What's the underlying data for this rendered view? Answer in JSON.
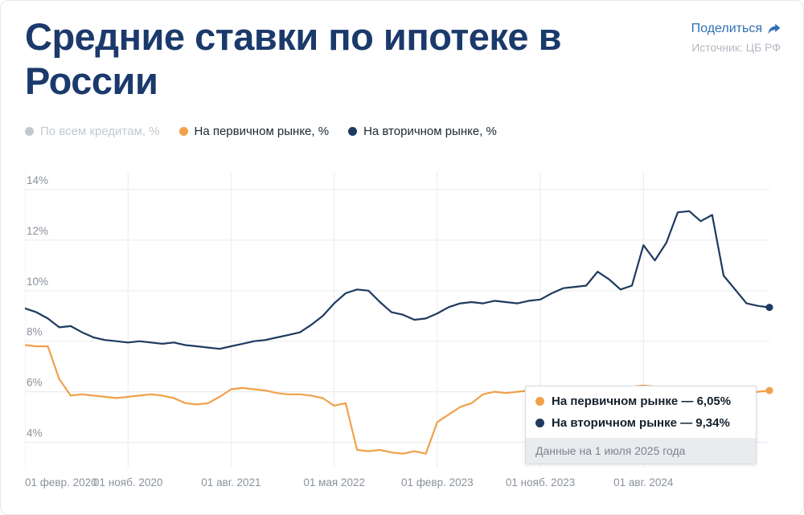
{
  "header": {
    "title": "Средние ставки по ипотеке в России",
    "share_label": "Поделиться",
    "source": "Источник: ЦБ РФ"
  },
  "legend": {
    "items": [
      {
        "label": "По всем кредитам, %",
        "color": "#c3c9d0",
        "active": false
      },
      {
        "label": "На первичном рынке, %",
        "color": "#f2a04a",
        "active": true
      },
      {
        "label": "На вторичном рынке, %",
        "color": "#1e3a5f",
        "active": true
      }
    ]
  },
  "tooltip": {
    "items": [
      {
        "text": "На первичном рынке — 6,05%",
        "color": "#f2a04a"
      },
      {
        "text": "На вторичном рынке — 9,34%",
        "color": "#1e3a5f"
      }
    ],
    "footer": "Данные на 1 июля 2025 года"
  },
  "chart_data": {
    "type": "line",
    "title": "Средние ставки по ипотеке в России",
    "x_unit": "month",
    "x_start": "2020-02",
    "x_end": "2025-07",
    "tick_indices": [
      0,
      9,
      18,
      27,
      36,
      45,
      54
    ],
    "tick_labels": [
      "01 февр. 2020",
      "01 нояб. 2020",
      "01 авг. 2021",
      "01 мая 2022",
      "01 февр. 2023",
      "01 нояб. 2023",
      "01 авг. 2024"
    ],
    "ylim": [
      3.0,
      14.7
    ],
    "y_ticks": [
      4,
      6,
      8,
      10,
      12,
      14
    ],
    "y_tick_labels": [
      "4%",
      "6%",
      "8%",
      "10%",
      "12%",
      "14%"
    ],
    "grid": true,
    "grid_color": "#e8eaee",
    "axis_label_color": "#8a919b",
    "legend_position": "top",
    "series": [
      {
        "id": "primary",
        "name": "На первичном рынке, %",
        "color": "#f2a04a",
        "last_value_label": "6,05%",
        "values": [
          7.85,
          7.8,
          7.8,
          6.5,
          5.85,
          5.9,
          5.85,
          5.8,
          5.75,
          5.8,
          5.85,
          5.9,
          5.85,
          5.75,
          5.55,
          5.5,
          5.55,
          5.8,
          6.1,
          6.15,
          6.1,
          6.05,
          5.95,
          5.9,
          5.9,
          5.85,
          5.75,
          5.45,
          5.55,
          3.7,
          3.65,
          3.7,
          3.6,
          3.55,
          3.65,
          3.55,
          4.8,
          5.1,
          5.4,
          5.55,
          5.9,
          6.0,
          5.95,
          6.0,
          6.05,
          6.1,
          6.05,
          6.1,
          6.15,
          6.2,
          6.15,
          6.1,
          6.15,
          6.2,
          6.25,
          6.2,
          6.1,
          6.15,
          6.2,
          6.0,
          5.9,
          5.95,
          6.0,
          6.0,
          6.0,
          6.05
        ]
      },
      {
        "id": "secondary",
        "name": "На вторичном рынке, %",
        "color": "#1e3a5f",
        "last_value_label": "9,34%",
        "values": [
          9.3,
          9.15,
          8.9,
          8.55,
          8.6,
          8.35,
          8.15,
          8.05,
          8.0,
          7.95,
          8.0,
          7.95,
          7.9,
          7.95,
          7.85,
          7.8,
          7.75,
          7.7,
          7.8,
          7.9,
          8.0,
          8.05,
          8.15,
          8.25,
          8.35,
          8.65,
          9.0,
          9.5,
          9.9,
          10.05,
          10.0,
          9.55,
          9.15,
          9.05,
          8.85,
          8.9,
          9.1,
          9.35,
          9.5,
          9.55,
          9.5,
          9.6,
          9.55,
          9.5,
          9.6,
          9.65,
          9.9,
          10.1,
          10.15,
          10.2,
          10.75,
          10.45,
          10.05,
          10.2,
          11.8,
          11.2,
          11.9,
          13.1,
          13.15,
          12.75,
          13.0,
          10.6,
          10.05,
          9.5,
          9.4,
          9.34
        ]
      }
    ],
    "disabled_series": [
      {
        "name": "По всем кредитам, %",
        "color": "#c3c9d0",
        "visible": false
      }
    ],
    "annotation": "Данные на 1 июля 2025 года"
  }
}
